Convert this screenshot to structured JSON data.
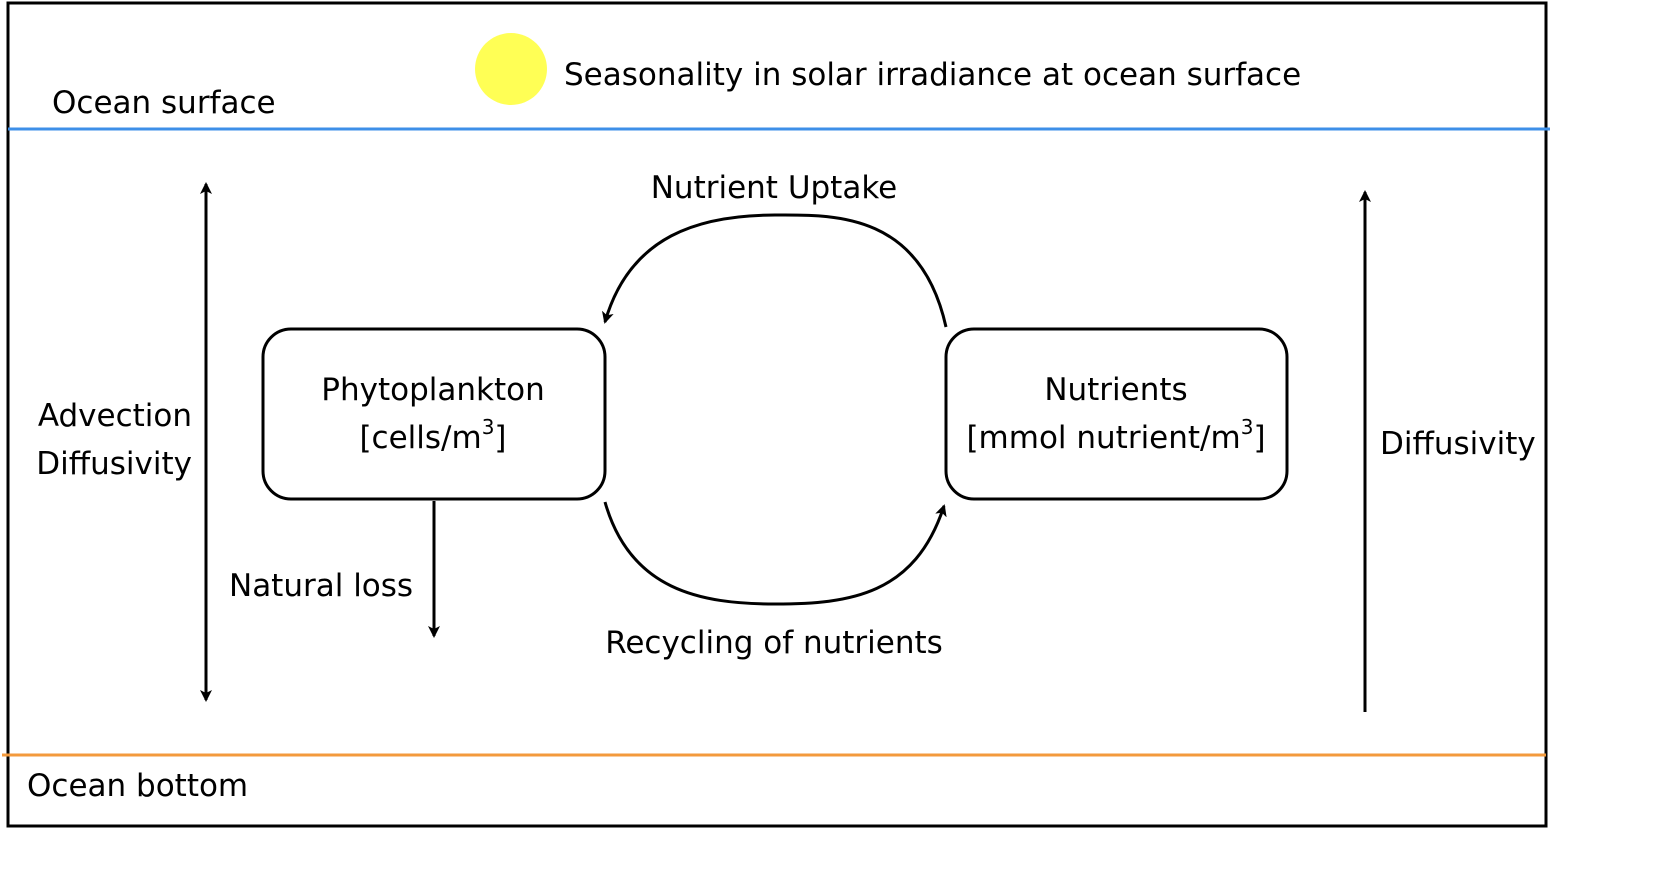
{
  "layers": {
    "surface_label": "Ocean surface",
    "bottom_label": "Ocean bottom",
    "surface_color": "#3d8fe8",
    "bottom_color": "#f39a3c"
  },
  "sun": {
    "icon": "sun-icon",
    "color": "#ffff55",
    "caption": "Seasonality in solar irradiance at ocean surface"
  },
  "boxes": {
    "phytoplankton": {
      "title": "Phytoplankton",
      "unit_main": "[cells/m",
      "unit_sup": "3",
      "unit_close": "]"
    },
    "nutrients": {
      "title": "Nutrients",
      "unit_main": "[mmol nutrient/m",
      "unit_sup": "3",
      "unit_close": "]"
    }
  },
  "processes": {
    "uptake": "Nutrient Uptake",
    "recycling": "Recycling of nutrients",
    "natural_loss": "Natural loss",
    "left_transport_line1": "Advection",
    "left_transport_line2": "Diffusivity",
    "right_transport": "Diffusivity"
  }
}
